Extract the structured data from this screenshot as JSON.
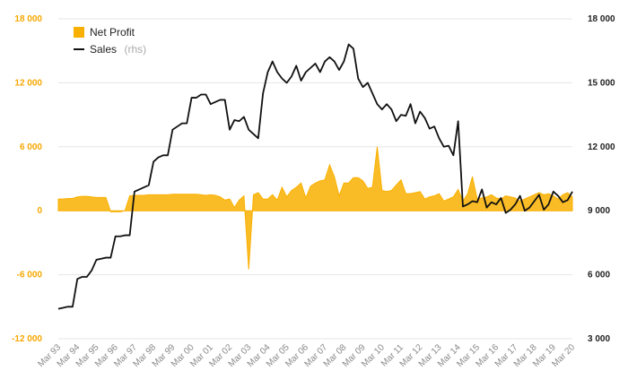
{
  "chart_data": {
    "type": "area+line",
    "legend_placement": "top-left",
    "grid": true,
    "colors": {
      "profit": "#f9b000",
      "sales": "#111111",
      "grid": "#e6e6e6",
      "left_axis_text": "#f5a800",
      "right_axis_text": "#222222",
      "x_axis_text": "#888888"
    },
    "y_left": {
      "ylim": [
        -12000,
        18000
      ],
      "ticks": [
        18000,
        12000,
        6000,
        0,
        -6000,
        -12000
      ],
      "tick_labels": [
        "18 000",
        "12 000",
        "6 000",
        "0",
        "-6 000",
        "-12 000"
      ]
    },
    "y_right": {
      "ylim": [
        3000,
        18000
      ],
      "ticks": [
        18000,
        15000,
        12000,
        9000,
        6000,
        3000
      ],
      "tick_labels": [
        "18 000",
        "15 000",
        "12 000",
        "9 000",
        "6 000",
        "3 000"
      ]
    },
    "x_labels": [
      "Mar 93",
      "Mar 94",
      "Mar 95",
      "Mar 96",
      "Mar 97",
      "Mar 98",
      "Mar 99",
      "Mar 00",
      "Mar 01",
      "Mar 02",
      "Mar 03",
      "Mar 04",
      "Mar 05",
      "Mar 06",
      "Mar 07",
      "Mar 08",
      "Mar 09",
      "Mar 10",
      "Mar 11",
      "Mar 12",
      "Mar 13",
      "Mar 14",
      "Mar 15",
      "Mar 16",
      "Mar 17",
      "Mar 18",
      "Mar 19",
      "Mar 20"
    ],
    "series": [
      {
        "name": "Net Profit",
        "axis": "left",
        "kind": "area",
        "x": [
          0,
          0.25,
          0.5,
          0.75,
          1,
          1.25,
          1.5,
          1.75,
          2,
          2.25,
          2.5,
          2.75,
          3,
          3.25,
          3.5,
          3.75,
          4,
          4.25,
          4.5,
          4.75,
          5,
          5.25,
          5.5,
          5.75,
          6,
          6.25,
          6.5,
          6.75,
          7,
          7.25,
          7.5,
          7.75,
          8,
          8.25,
          8.5,
          8.75,
          9,
          9.25,
          9.5,
          9.75,
          10,
          10.25,
          10.5,
          10.75,
          11,
          11.25,
          11.5,
          11.75,
          12,
          12.25,
          12.5,
          12.75,
          13,
          13.25,
          13.5,
          13.75,
          14,
          14.25,
          14.5,
          14.75,
          15,
          15.25,
          15.5,
          15.75,
          16,
          16.25,
          16.5,
          16.75,
          17,
          17.25,
          17.5,
          17.75,
          18,
          18.25,
          18.5,
          18.75,
          19,
          19.25,
          19.5,
          19.75,
          20,
          20.25,
          20.5,
          20.75,
          21,
          21.25,
          21.5,
          21.75,
          22,
          22.25,
          22.5,
          22.75,
          23,
          23.25,
          23.5,
          23.75,
          24,
          24.25,
          24.5,
          24.75,
          25,
          25.25,
          25.5,
          25.75,
          26,
          26.25,
          26.5,
          26.75,
          27
        ],
        "values": [
          1100,
          1100,
          1150,
          1150,
          1300,
          1350,
          1350,
          1300,
          1250,
          1250,
          1250,
          -100,
          -100,
          -100,
          0,
          1400,
          1450,
          1450,
          1450,
          1500,
          1500,
          1500,
          1500,
          1500,
          1550,
          1550,
          1550,
          1550,
          1550,
          1550,
          1500,
          1450,
          1500,
          1450,
          1300,
          1000,
          1100,
          300,
          1000,
          1400,
          -5500,
          1500,
          1700,
          1100,
          1100,
          1500,
          1000,
          2200,
          1300,
          1900,
          2200,
          2600,
          1200,
          2300,
          2600,
          2800,
          2900,
          4300,
          3200,
          1400,
          2600,
          2600,
          3100,
          3100,
          2800,
          2100,
          2200,
          6000,
          1900,
          1800,
          1900,
          2400,
          2900,
          1600,
          1600,
          1700,
          1800,
          1100,
          1300,
          1400,
          1600,
          900,
          1100,
          1300,
          2000,
          900,
          1600,
          3200,
          1100,
          1200,
          1300,
          1500,
          1200,
          1100,
          1400,
          1300,
          1200,
          900,
          1100,
          1300,
          1500,
          1700,
          1500,
          1600,
          1400,
          1100,
          1500,
          1700,
          1300
        ]
      },
      {
        "name": "Sales",
        "name_suffix": "(rhs)",
        "axis": "right",
        "kind": "line",
        "x": [
          0,
          0.25,
          0.5,
          0.75,
          1,
          1.25,
          1.5,
          1.75,
          2,
          2.25,
          2.5,
          2.75,
          3,
          3.25,
          3.5,
          3.75,
          4,
          4.25,
          4.5,
          4.75,
          5,
          5.25,
          5.5,
          5.75,
          6,
          6.25,
          6.5,
          6.75,
          7,
          7.25,
          7.5,
          7.75,
          8,
          8.25,
          8.5,
          8.75,
          9,
          9.25,
          9.5,
          9.75,
          10,
          10.25,
          10.5,
          10.75,
          11,
          11.25,
          11.5,
          11.75,
          12,
          12.25,
          12.5,
          12.75,
          13,
          13.25,
          13.5,
          13.75,
          14,
          14.25,
          14.5,
          14.75,
          15,
          15.25,
          15.5,
          15.75,
          16,
          16.25,
          16.5,
          16.75,
          17,
          17.25,
          17.5,
          17.75,
          18,
          18.25,
          18.5,
          18.75,
          19,
          19.25,
          19.5,
          19.75,
          20,
          20.25,
          20.5,
          20.75,
          21,
          21.25,
          21.5,
          21.75,
          22,
          22.25,
          22.5,
          22.75,
          23,
          23.25,
          23.5,
          23.75,
          24,
          24.25,
          24.5,
          24.75,
          25,
          25.25,
          25.5,
          25.75,
          26,
          26.25,
          26.5,
          26.75,
          27
        ],
        "values": [
          4400,
          4450,
          4500,
          4500,
          5800,
          5900,
          5900,
          6200,
          6700,
          6750,
          6800,
          6800,
          7800,
          7800,
          7850,
          7850,
          9900,
          10000,
          10100,
          10200,
          11300,
          11500,
          11600,
          11600,
          12800,
          12950,
          13100,
          13100,
          14300,
          14300,
          14450,
          14450,
          14000,
          14100,
          14200,
          14200,
          12800,
          13250,
          13200,
          13400,
          12800,
          12600,
          12400,
          14500,
          15500,
          16000,
          15500,
          15200,
          15000,
          15300,
          15800,
          15100,
          15500,
          15700,
          15900,
          15500,
          16000,
          16200,
          16000,
          15600,
          16000,
          16800,
          16600,
          15200,
          14800,
          15000,
          14500,
          14000,
          13750,
          14000,
          13750,
          13200,
          13500,
          13450,
          14000,
          13100,
          13650,
          13350,
          12850,
          12950,
          12400,
          12000,
          12050,
          11600,
          13200,
          9200,
          9300,
          9450,
          9400,
          10000,
          9150,
          9400,
          9300,
          9600,
          8900,
          9050,
          9300,
          9700,
          9000,
          9150,
          9450,
          9750,
          9050,
          9300,
          9900,
          9700,
          9400,
          9500,
          9900
        ]
      }
    ],
    "legend": [
      {
        "label": "Net Profit",
        "suffix": ""
      },
      {
        "label": "Sales",
        "suffix": "(rhs)"
      }
    ]
  }
}
